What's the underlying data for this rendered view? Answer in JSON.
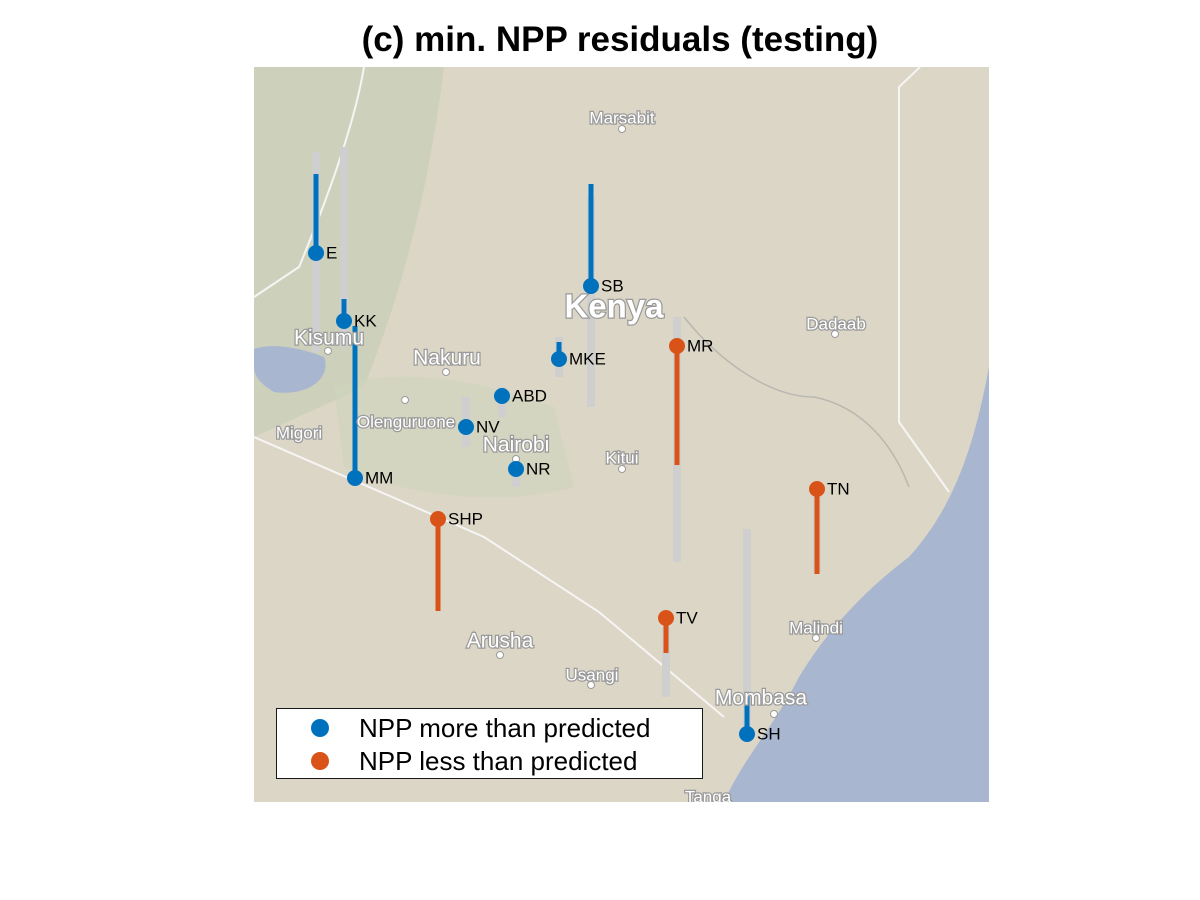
{
  "title": "(c) min. NPP residuals (testing)",
  "colors": {
    "more_than_predicted": "#0072BD",
    "less_than_predicted": "#D95319",
    "residual_bar": "#cfcfcf"
  },
  "places": [
    {
      "name": "Marsabit",
      "size": "small"
    },
    {
      "name": "Kenya",
      "size": "country"
    },
    {
      "name": "Dadaab",
      "size": "small"
    },
    {
      "name": "Kisumu",
      "size": "large"
    },
    {
      "name": "Nakuru",
      "size": "large"
    },
    {
      "name": "Olenguruone",
      "size": "small"
    },
    {
      "name": "Migori",
      "size": "small"
    },
    {
      "name": "Nairobi",
      "size": "large"
    },
    {
      "name": "Kitui",
      "size": "small"
    },
    {
      "name": "Malindi",
      "size": "small"
    },
    {
      "name": "Arusha",
      "size": "large"
    },
    {
      "name": "Usangi",
      "size": "small"
    },
    {
      "name": "Mombasa",
      "size": "large"
    },
    {
      "name": "Tanga",
      "size": "small"
    }
  ],
  "stations": [
    {
      "code": "E",
      "direction": "more",
      "residual": 0.79,
      "range": 1.0
    },
    {
      "code": "KK",
      "direction": "more",
      "residual": 0.22,
      "range": 1.75
    },
    {
      "code": "SB",
      "direction": "more",
      "residual": 1.02,
      "range": 1.24
    },
    {
      "code": "MKE",
      "direction": "more",
      "residual": 0.17,
      "range": 0.0
    },
    {
      "code": "MR",
      "direction": "less",
      "residual": 1.19,
      "range": 2.15
    },
    {
      "code": "ABD",
      "direction": "more",
      "residual": 0.0,
      "range": 0.0
    },
    {
      "code": "NV",
      "direction": "more",
      "residual": 0.0,
      "range": 0.0
    },
    {
      "code": "MM",
      "direction": "more",
      "residual": 1.52,
      "range": 1.52
    },
    {
      "code": "NR",
      "direction": "more",
      "residual": 0.0,
      "range": 0.0
    },
    {
      "code": "TN",
      "direction": "less",
      "residual": 0.85,
      "range": 0.85
    },
    {
      "code": "SHP",
      "direction": "less",
      "residual": 0.92,
      "range": 0.92
    },
    {
      "code": "TV",
      "direction": "less",
      "residual": 0.35,
      "range": 0.8
    },
    {
      "code": "SH",
      "direction": "more",
      "residual": 0.4,
      "range": 2.04
    }
  ],
  "legend": [
    {
      "label": "NPP more than predicted",
      "direction": "more"
    },
    {
      "label": "NPP less than predicted",
      "direction": "less"
    }
  ]
}
